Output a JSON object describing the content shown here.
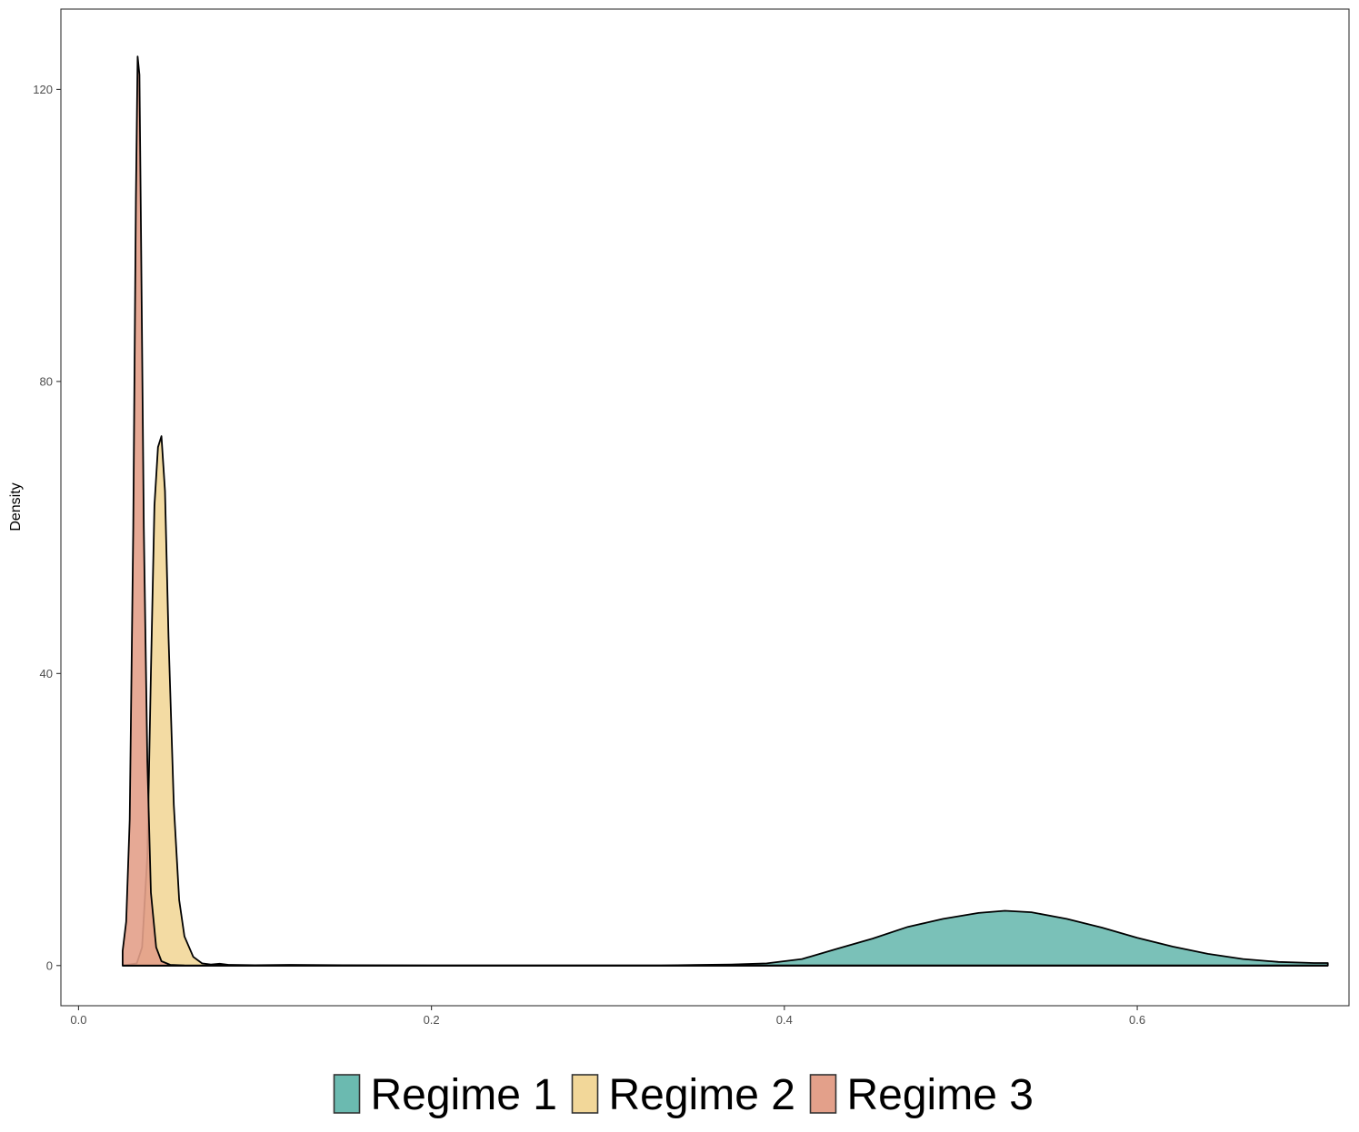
{
  "chart_data": {
    "type": "area",
    "subtype": "density",
    "title": "",
    "xlabel": "",
    "ylabel": "Density",
    "xlim": [
      -0.01,
      0.72
    ],
    "ylim": [
      -5.5,
      131
    ],
    "x_ticks": [
      0.0,
      0.2,
      0.4,
      0.6
    ],
    "x_tick_labels": [
      "0.0",
      "0.2",
      "0.4",
      "0.6"
    ],
    "y_ticks": [
      0,
      40,
      80,
      120
    ],
    "y_tick_labels": [
      "0",
      "40",
      "80",
      "120"
    ],
    "grid": false,
    "legend_position": "bottom",
    "series": [
      {
        "name": "Regime 1",
        "color": "#6BBAB0",
        "points": [
          [
            0.025,
            0
          ],
          [
            0.2,
            0
          ],
          [
            0.33,
            0.02
          ],
          [
            0.37,
            0.15
          ],
          [
            0.39,
            0.3
          ],
          [
            0.41,
            0.9
          ],
          [
            0.43,
            2.3
          ],
          [
            0.45,
            3.7
          ],
          [
            0.47,
            5.3
          ],
          [
            0.49,
            6.4
          ],
          [
            0.51,
            7.2
          ],
          [
            0.525,
            7.5
          ],
          [
            0.54,
            7.3
          ],
          [
            0.56,
            6.4
          ],
          [
            0.58,
            5.2
          ],
          [
            0.6,
            3.8
          ],
          [
            0.62,
            2.6
          ],
          [
            0.64,
            1.6
          ],
          [
            0.66,
            0.9
          ],
          [
            0.68,
            0.5
          ],
          [
            0.7,
            0.35
          ],
          [
            0.708,
            0.35
          ],
          [
            0.708,
            0
          ]
        ]
      },
      {
        "name": "Regime 2",
        "color": "#F2D799",
        "points": [
          [
            0.025,
            0
          ],
          [
            0.033,
            0.3
          ],
          [
            0.036,
            2.5
          ],
          [
            0.039,
            15
          ],
          [
            0.041,
            40
          ],
          [
            0.043,
            63
          ],
          [
            0.045,
            71
          ],
          [
            0.047,
            72.5
          ],
          [
            0.049,
            65
          ],
          [
            0.051,
            45
          ],
          [
            0.054,
            22
          ],
          [
            0.057,
            9
          ],
          [
            0.06,
            4
          ],
          [
            0.065,
            1.2
          ],
          [
            0.07,
            0.3
          ],
          [
            0.075,
            0.15
          ],
          [
            0.08,
            0.25
          ],
          [
            0.085,
            0.1
          ],
          [
            0.1,
            0.05
          ],
          [
            0.12,
            0.1
          ],
          [
            0.15,
            0.05
          ],
          [
            0.2,
            0.02
          ],
          [
            0.3,
            0
          ],
          [
            0.708,
            0
          ]
        ]
      },
      {
        "name": "Regime 3",
        "color": "#E3A08A",
        "points": [
          [
            0.025,
            2
          ],
          [
            0.027,
            6
          ],
          [
            0.029,
            20
          ],
          [
            0.031,
            60
          ],
          [
            0.0325,
            105
          ],
          [
            0.0335,
            124.5
          ],
          [
            0.0345,
            122
          ],
          [
            0.0355,
            98
          ],
          [
            0.037,
            60
          ],
          [
            0.039,
            28
          ],
          [
            0.041,
            10
          ],
          [
            0.044,
            2.5
          ],
          [
            0.047,
            0.6
          ],
          [
            0.052,
            0.1
          ],
          [
            0.06,
            0.02
          ],
          [
            0.08,
            0
          ],
          [
            0.708,
            0
          ]
        ]
      }
    ]
  }
}
